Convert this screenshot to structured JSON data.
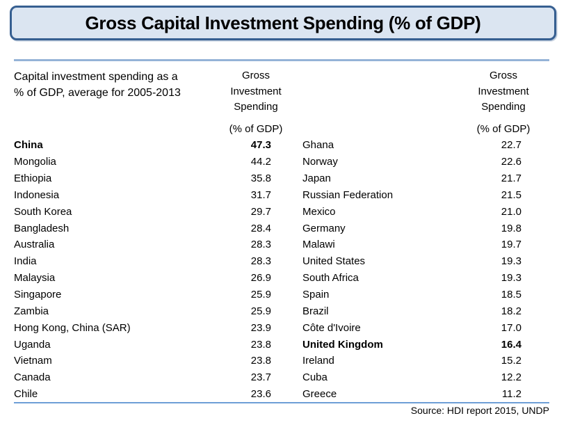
{
  "colors": {
    "title_fill": "#dbe5f1",
    "title_border": "#365f91",
    "divider_top": "#95b3d7",
    "divider_bottom": "#6d9ed6",
    "text": "#000000",
    "background": "#ffffff"
  },
  "chart_data": {
    "type": "table",
    "title": "Gross Capital Investment Spending (% of GDP)",
    "subtitle_lines": [
      "Capital investment spending as a",
      "% of GDP, average for 2005-2013"
    ],
    "value_header_lines": [
      "Gross",
      "Investment",
      "Spending"
    ],
    "value_header_unit": "(% of GDP)",
    "source": "Source: HDI report 2015, UNDP",
    "left_rows": [
      {
        "country": "China",
        "value": "47.3",
        "bold": true
      },
      {
        "country": "Mongolia",
        "value": "44.2",
        "bold": false
      },
      {
        "country": "Ethiopia",
        "value": "35.8",
        "bold": false
      },
      {
        "country": "Indonesia",
        "value": "31.7",
        "bold": false
      },
      {
        "country": "South Korea",
        "value": "29.7",
        "bold": false
      },
      {
        "country": "Bangladesh",
        "value": "28.4",
        "bold": false
      },
      {
        "country": "Australia",
        "value": "28.3",
        "bold": false
      },
      {
        "country": "India",
        "value": "28.3",
        "bold": false
      },
      {
        "country": "Malaysia",
        "value": "26.9",
        "bold": false
      },
      {
        "country": "Singapore",
        "value": "25.9",
        "bold": false
      },
      {
        "country": "Zambia",
        "value": "25.9",
        "bold": false
      },
      {
        "country": "Hong Kong, China (SAR)",
        "value": "23.9",
        "bold": false
      },
      {
        "country": "Uganda",
        "value": "23.8",
        "bold": false
      },
      {
        "country": "Vietnam",
        "value": "23.8",
        "bold": false
      },
      {
        "country": "Canada",
        "value": "23.7",
        "bold": false
      },
      {
        "country": "Chile",
        "value": "23.6",
        "bold": false
      }
    ],
    "right_rows": [
      {
        "country": "Ghana",
        "value": "22.7",
        "bold": false
      },
      {
        "country": "Norway",
        "value": "22.6",
        "bold": false
      },
      {
        "country": "Japan",
        "value": "21.7",
        "bold": false
      },
      {
        "country": "Russian Federation",
        "value": "21.5",
        "bold": false
      },
      {
        "country": "Mexico",
        "value": "21.0",
        "bold": false
      },
      {
        "country": "Germany",
        "value": "19.8",
        "bold": false
      },
      {
        "country": "Malawi",
        "value": "19.7",
        "bold": false
      },
      {
        "country": "United States",
        "value": "19.3",
        "bold": false
      },
      {
        "country": "South Africa",
        "value": "19.3",
        "bold": false
      },
      {
        "country": "Spain",
        "value": "18.5",
        "bold": false
      },
      {
        "country": "Brazil",
        "value": "18.2",
        "bold": false
      },
      {
        "country": "Côte d'Ivoire",
        "value": "17.0",
        "bold": false
      },
      {
        "country": "United Kingdom",
        "value": "16.4",
        "bold": true
      },
      {
        "country": "Ireland",
        "value": "15.2",
        "bold": false
      },
      {
        "country": "Cuba",
        "value": "12.2",
        "bold": false
      },
      {
        "country": "Greece",
        "value": "11.2",
        "bold": false
      }
    ]
  }
}
